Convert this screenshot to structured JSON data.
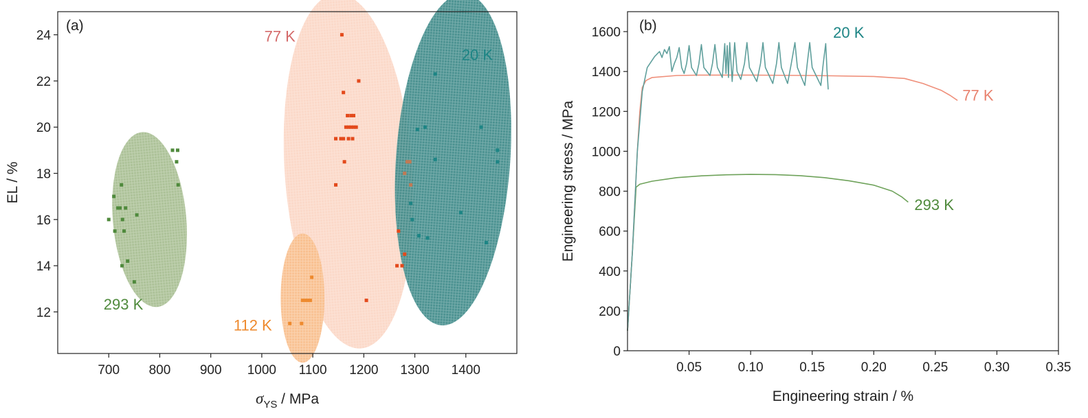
{
  "chart_data": [
    {
      "panel": "(a)",
      "type": "scatter",
      "xlabel_symbol": "σ",
      "xlabel_sub": "YS",
      "xlabel_unit": " / MPa",
      "ylabel": "EL / %",
      "xlim": [
        600,
        1500
      ],
      "ylim": [
        10.2,
        25
      ],
      "xticks": [
        700,
        800,
        900,
        1000,
        1100,
        1200,
        1300,
        1400
      ],
      "yticks": [
        12,
        14,
        16,
        18,
        20,
        22,
        24
      ],
      "grid": false,
      "groups": [
        {
          "name": "293 K",
          "color": "#4f8a3c",
          "region_color": "#a9bf93",
          "region": {
            "cx": 780,
            "cy": 16.0,
            "rx": 72,
            "ry": 3.8,
            "angle_deg": -5
          },
          "points": [
            [
              700,
              16.0
            ],
            [
              710,
              17.0
            ],
            [
              712,
              15.5
            ],
            [
              718,
              16.5
            ],
            [
              722,
              16.5
            ],
            [
              725,
              17.5
            ],
            [
              727,
              16.0
            ],
            [
              730,
              15.5
            ],
            [
              726,
              14.0
            ],
            [
              733,
              16.5
            ],
            [
              737,
              14.2
            ],
            [
              750,
              13.3
            ],
            [
              755,
              16.2
            ],
            [
              825,
              19.0
            ],
            [
              835,
              19.0
            ],
            [
              833,
              18.5
            ],
            [
              836,
              17.5
            ]
          ]
        },
        {
          "name": "77 K",
          "color": "#e34a1c",
          "region_color": "#fbd7c6",
          "region": {
            "cx": 1170,
            "cy": 18.1,
            "rx": 125,
            "ry": 7.7,
            "angle_deg": -4
          },
          "points": [
            [
              1157,
              24.0
            ],
            [
              1160,
              21.5
            ],
            [
              1190,
              22.0
            ],
            [
              1168,
              20.5
            ],
            [
              1175,
              20.5
            ],
            [
              1180,
              20.5
            ],
            [
              1165,
              20.0
            ],
            [
              1170,
              20.0
            ],
            [
              1175,
              20.0
            ],
            [
              1180,
              20.0
            ],
            [
              1185,
              20.0
            ],
            [
              1145,
              19.5
            ],
            [
              1155,
              19.5
            ],
            [
              1160,
              19.5
            ],
            [
              1170,
              19.5
            ],
            [
              1178,
              19.5
            ],
            [
              1162,
              18.5
            ],
            [
              1145,
              17.5
            ],
            [
              1268,
              15.5
            ],
            [
              1265,
              14.0
            ],
            [
              1275,
              14.0
            ],
            [
              1280,
              14.5
            ],
            [
              1205,
              12.5
            ]
          ]
        },
        {
          "name": "20 K",
          "color": "#1d8585",
          "region_color": "#3e8a89",
          "region": {
            "cx": 1375,
            "cy": 18.6,
            "rx": 112,
            "ry": 7.2,
            "angle_deg": 4
          },
          "points": [
            [
              1340,
              22.3
            ],
            [
              1305,
              19.9
            ],
            [
              1320,
              20.0
            ],
            [
              1430,
              20.0
            ],
            [
              1462,
              19.0
            ],
            [
              1462,
              18.5
            ],
            [
              1340,
              18.6
            ],
            [
              1390,
              16.3
            ],
            [
              1292,
              16.7
            ],
            [
              1295,
              16.0
            ],
            [
              1308,
              15.3
            ],
            [
              1325,
              15.2
            ],
            [
              1440,
              15.0
            ]
          ]
        },
        {
          "name": "112 K",
          "color": "#ee8a2e",
          "region_color": "#f9c08f",
          "region": {
            "cx": 1080,
            "cy": 12.6,
            "rx": 43,
            "ry": 2.8,
            "angle_deg": 0
          },
          "points": [
            [
              1085,
              12.5
            ],
            [
              1090,
              12.5
            ],
            [
              1095,
              12.5
            ],
            [
              1080,
              12.5
            ],
            [
              1098,
              13.5
            ],
            [
              1055,
              11.5
            ],
            [
              1078,
              11.5
            ]
          ]
        }
      ],
      "overlap_points": {
        "color": "#c07a55",
        "points": [
          [
            1285,
            18.5
          ],
          [
            1290,
            18.5
          ],
          [
            1280,
            18.0
          ],
          [
            1292,
            17.5
          ]
        ]
      }
    },
    {
      "panel": "(b)",
      "type": "line",
      "xlabel": "Engineering strain / %",
      "ylabel": "Engineering stress / MPa",
      "xlim": [
        0,
        0.35
      ],
      "ylim": [
        0,
        1700
      ],
      "xticks": [
        0.05,
        0.1,
        0.15,
        0.2,
        0.25,
        0.3,
        0.35
      ],
      "xtick_labels": [
        "0.05",
        "0.10",
        "0.15",
        "0.20",
        "0.25",
        "0.30",
        "0.35"
      ],
      "yticks": [
        0,
        200,
        400,
        600,
        800,
        1000,
        1200,
        1400,
        1600
      ],
      "grid": false,
      "series": [
        {
          "name": "293 K",
          "color": "#6ea25a",
          "points": [
            [
              0,
              100
            ],
            [
              0.004,
              500
            ],
            [
              0.007,
              820
            ],
            [
              0.01,
              835
            ],
            [
              0.02,
              850
            ],
            [
              0.04,
              868
            ],
            [
              0.06,
              877
            ],
            [
              0.08,
              882
            ],
            [
              0.1,
              884
            ],
            [
              0.12,
              883
            ],
            [
              0.14,
              878
            ],
            [
              0.16,
              868
            ],
            [
              0.18,
              852
            ],
            [
              0.2,
              830
            ],
            [
              0.215,
              800
            ],
            [
              0.223,
              770
            ],
            [
              0.228,
              745
            ]
          ]
        },
        {
          "name": "77 K",
          "color": "#ef8f7a",
          "points": [
            [
              0,
              100
            ],
            [
              0.004,
              500
            ],
            [
              0.008,
              1000
            ],
            [
              0.01,
              1200
            ],
            [
              0.012,
              1320
            ],
            [
              0.015,
              1355
            ],
            [
              0.02,
              1370
            ],
            [
              0.04,
              1380
            ],
            [
              0.06,
              1382
            ],
            [
              0.1,
              1382
            ],
            [
              0.15,
              1380
            ],
            [
              0.2,
              1375
            ],
            [
              0.225,
              1365
            ],
            [
              0.24,
              1340
            ],
            [
              0.255,
              1305
            ],
            [
              0.262,
              1280
            ],
            [
              0.268,
              1255
            ]
          ]
        },
        {
          "name": "20 K",
          "color": "#5f9f9c",
          "points": [
            [
              0,
              100
            ],
            [
              0.004,
              500
            ],
            [
              0.008,
              1000
            ],
            [
              0.012,
              1300
            ],
            [
              0.016,
              1420
            ],
            [
              0.022,
              1475
            ],
            [
              0.026,
              1500
            ],
            [
              0.028,
              1470
            ],
            [
              0.03,
              1510
            ],
            [
              0.032,
              1490
            ],
            [
              0.034,
              1525
            ],
            [
              0.036,
              1400
            ],
            [
              0.038,
              1440
            ],
            [
              0.04,
              1470
            ],
            [
              0.042,
              1520
            ],
            [
              0.044,
              1420
            ],
            [
              0.046,
              1390
            ],
            [
              0.048,
              1440
            ],
            [
              0.05,
              1530
            ],
            [
              0.052,
              1420
            ],
            [
              0.056,
              1380
            ],
            [
              0.058,
              1440
            ],
            [
              0.06,
              1535
            ],
            [
              0.062,
              1420
            ],
            [
              0.067,
              1380
            ],
            [
              0.069,
              1440
            ],
            [
              0.071,
              1535
            ],
            [
              0.073,
              1420
            ],
            [
              0.077,
              1370
            ],
            [
              0.079,
              1540
            ],
            [
              0.08,
              1390
            ],
            [
              0.081,
              1530
            ],
            [
              0.082,
              1370
            ],
            [
              0.083,
              1545
            ],
            [
              0.085,
              1350
            ],
            [
              0.087,
              1545
            ],
            [
              0.089,
              1400
            ],
            [
              0.092,
              1360
            ],
            [
              0.095,
              1440
            ],
            [
              0.097,
              1545
            ],
            [
              0.099,
              1420
            ],
            [
              0.105,
              1350
            ],
            [
              0.108,
              1440
            ],
            [
              0.11,
              1545
            ],
            [
              0.112,
              1420
            ],
            [
              0.118,
              1340
            ],
            [
              0.121,
              1440
            ],
            [
              0.123,
              1545
            ],
            [
              0.125,
              1420
            ],
            [
              0.13,
              1340
            ],
            [
              0.133,
              1440
            ],
            [
              0.136,
              1545
            ],
            [
              0.138,
              1420
            ],
            [
              0.144,
              1330
            ],
            [
              0.146,
              1440
            ],
            [
              0.148,
              1545
            ],
            [
              0.15,
              1420
            ],
            [
              0.157,
              1330
            ],
            [
              0.159,
              1440
            ],
            [
              0.161,
              1540
            ],
            [
              0.162,
              1410
            ],
            [
              0.163,
              1310
            ]
          ]
        }
      ]
    }
  ]
}
